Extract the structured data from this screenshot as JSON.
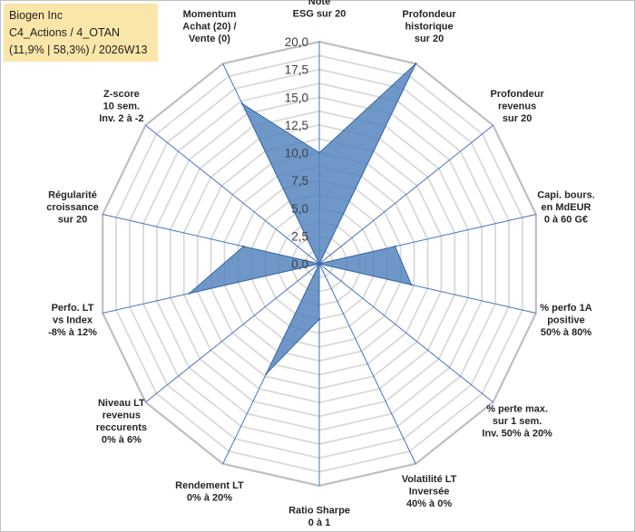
{
  "header": {
    "line1": "Biogen Inc",
    "line2": "C4_Actions / 4_OTAN",
    "line3": "(11,9% | 58,3%) / 2026W13"
  },
  "chart_data": {
    "type": "radar",
    "title": "Biogen Inc",
    "rlim": [
      0,
      20
    ],
    "ticks": [
      "0,0",
      "2,5",
      "5,0",
      "7,5",
      "10,0",
      "12,5",
      "15,0",
      "17,5",
      "20,0"
    ],
    "axes": [
      [
        "Note",
        "ESG sur 20"
      ],
      [
        "Profondeur",
        "historique",
        "sur 20"
      ],
      [
        "Profondeur",
        "revenus",
        "sur 20"
      ],
      [
        "Capi. bours.",
        "en MdEUR",
        "0 à 60 G€"
      ],
      [
        "% perfo 1A",
        "positive",
        "50% à 80%"
      ],
      [
        "% perte max.",
        "sur 1 sem.",
        "Inv. 50% à 20%"
      ],
      [
        "Volatilité LT",
        "Inversée",
        "40% à 0%"
      ],
      [
        "Ratio Sharpe",
        "0 à 1"
      ],
      [
        "Rendement LT",
        "0% à 20%"
      ],
      [
        "Niveau LT",
        "revenus",
        "reccurents",
        "0% à 6%"
      ],
      [
        "Perfo. LT",
        "vs Index",
        "-8% à 12%"
      ],
      [
        "Régularité",
        "croissance",
        "sur 20"
      ],
      [
        "Z-score",
        "10 sem.",
        "Inv. 2 à -2"
      ],
      [
        "Momentum",
        "Achat (20) /",
        "Vente (0)"
      ]
    ],
    "series": [
      {
        "name": "Biogen Inc",
        "values": [
          10,
          20,
          0,
          7,
          8.5,
          0,
          0,
          5,
          11,
          0,
          12,
          7,
          0,
          16
        ],
        "color": "#4f81bd"
      }
    ]
  }
}
